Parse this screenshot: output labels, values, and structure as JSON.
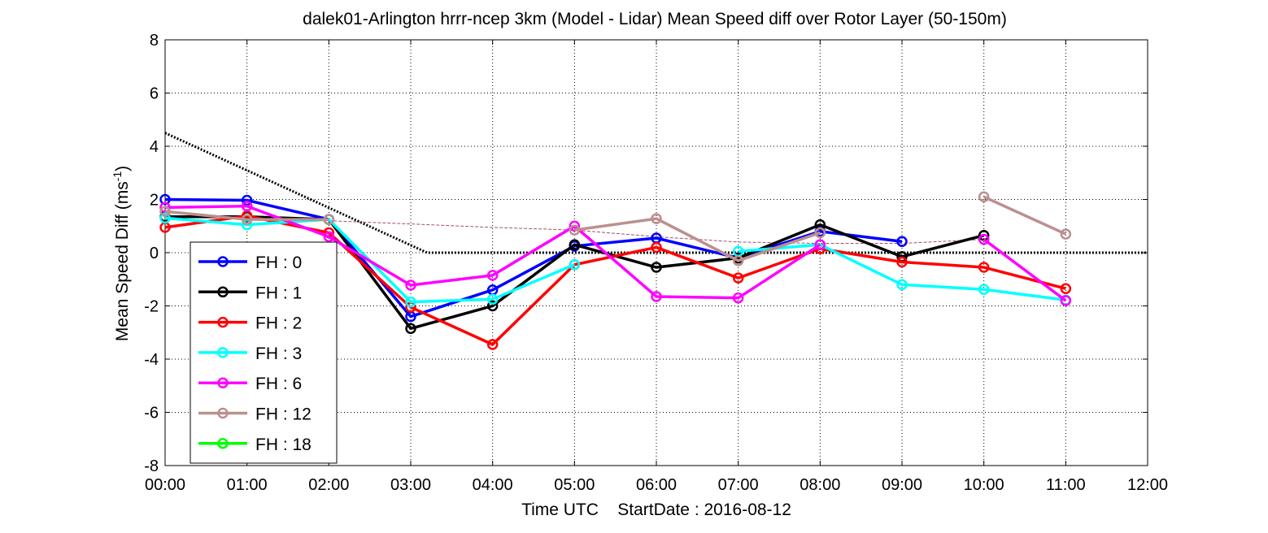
{
  "chart_data": {
    "type": "line",
    "title": "dalek01-Arlington hrrr-ncep 3km (Model - Lidar) Mean Speed diff over Rotor Layer (50-150m)",
    "xlabel": "Time UTC    StartDate : 2016-08-12",
    "ylabel": "Mean Speed Diff (ms",
    "ylabel_unit_sup": "-1",
    "ylabel_close": ")",
    "xlim": [
      0,
      12
    ],
    "ylim": [
      -8,
      8
    ],
    "grid": true,
    "legend_position": "bottom-left",
    "x_tick_values": [
      0,
      1,
      2,
      3,
      4,
      5,
      6,
      7,
      8,
      9,
      10,
      11,
      12
    ],
    "x_tick_labels": [
      "00:00",
      "01:00",
      "02:00",
      "03:00",
      "04:00",
      "05:00",
      "06:00",
      "07:00",
      "08:00",
      "09:00",
      "10:00",
      "11:00",
      "12:00"
    ],
    "y_tick_values": [
      -8,
      -6,
      -4,
      -2,
      0,
      2,
      4,
      6,
      8
    ],
    "y_tick_labels": [
      "-8",
      "-6",
      "-4",
      "-2",
      "0",
      "2",
      "4",
      "6",
      "8"
    ],
    "series": [
      {
        "name": "FH : 0",
        "color": "#0000ff",
        "x": [
          0,
          1,
          2,
          3,
          4,
          5,
          6,
          7,
          8,
          9
        ],
        "values": [
          2.0,
          1.97,
          1.25,
          -2.4,
          -1.4,
          0.25,
          0.55,
          -0.2,
          0.8,
          0.42
        ]
      },
      {
        "name": "FH : 1",
        "color": "#000000",
        "x": [
          0,
          1,
          2,
          3,
          4,
          5,
          6,
          7,
          8,
          9,
          10
        ],
        "values": [
          1.35,
          1.35,
          1.25,
          -2.85,
          -2.0,
          0.3,
          -0.55,
          -0.2,
          1.05,
          -0.15,
          0.65
        ]
      },
      {
        "name": "FH : 2",
        "color": "#ff0000",
        "x": [
          0,
          1,
          2,
          3,
          4,
          5,
          6,
          7,
          8,
          9,
          10,
          11
        ],
        "values": [
          0.95,
          1.38,
          0.75,
          -2.05,
          -3.45,
          -0.45,
          0.2,
          -0.95,
          0.15,
          -0.35,
          -0.55,
          -1.35
        ]
      },
      {
        "name": "FH : 3",
        "color": "#00ffff",
        "x": [
          0,
          1,
          2,
          3,
          4,
          5,
          6,
          7,
          8,
          9,
          10,
          11
        ],
        "values": [
          1.3,
          1.05,
          1.25,
          -1.85,
          -1.75,
          -0.45,
          null,
          0.05,
          0.3,
          -1.2,
          -1.38,
          -1.78
        ]
      },
      {
        "name": "FH : 6",
        "color": "#ff00ff",
        "x": [
          0,
          1,
          2,
          3,
          4,
          5,
          6,
          7,
          8,
          9,
          10,
          11
        ],
        "values": [
          1.7,
          1.75,
          0.6,
          -1.22,
          -0.85,
          1.0,
          -1.65,
          -1.7,
          0.3,
          null,
          0.5,
          -1.8
        ]
      },
      {
        "name": "FH : 12",
        "color": "#bc8f8f",
        "x": [
          0,
          1,
          2,
          3,
          4,
          5,
          6,
          7,
          8,
          9,
          10,
          11
        ],
        "values": [
          1.55,
          1.25,
          1.25,
          null,
          null,
          0.85,
          1.28,
          -0.3,
          0.75,
          null,
          2.1,
          0.7
        ]
      },
      {
        "name": "FH : 18",
        "color": "#00ff00",
        "x": [],
        "values": []
      }
    ],
    "reference_lines": [
      {
        "style": "dotted",
        "color": "#000000",
        "x": [
          0,
          3.2,
          12
        ],
        "values": [
          4.5,
          0,
          0
        ]
      },
      {
        "style": "dashed",
        "color": "#a0506e",
        "x": [
          2,
          3,
          4,
          5,
          6,
          7,
          8,
          9,
          10
        ],
        "values": [
          1.2,
          1.08,
          0.95,
          0.85,
          0.6,
          0.4,
          0.35,
          0.35,
          0.5
        ]
      }
    ]
  }
}
